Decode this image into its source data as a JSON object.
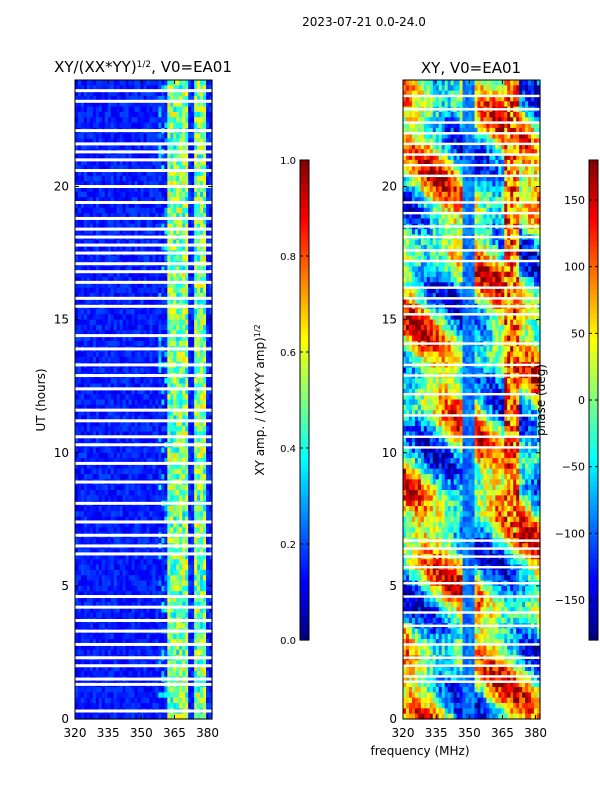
{
  "figure": {
    "suptitle": "2023-07-21 0.0-24.0",
    "xlabel": "frequency (MHz)"
  },
  "chart_data": [
    {
      "type": "heatmap",
      "title_main": "XY/(XX*YY)",
      "title_sup": "1/2",
      "title_rest": ", V0=EA01",
      "xlabel": "",
      "ylabel": "UT (hours)",
      "xlim": [
        320,
        382
      ],
      "ylim": [
        0,
        24
      ],
      "xticks": [
        320,
        335,
        350,
        365,
        380
      ],
      "yticks": [
        0,
        5,
        10,
        15,
        20
      ],
      "colorbar": {
        "label_main": "XY amp. / (XX*YY amp)",
        "label_sup": "1/2",
        "range": [
          0.0,
          1.0
        ],
        "ticks": [
          "0.0",
          "0.2",
          "0.4",
          "0.6",
          "0.8",
          "1.0"
        ],
        "colormap": "jet"
      },
      "features": {
        "background_level": 0.1,
        "bright_channels_mhz": [
          [
            362,
            364
          ],
          [
            365,
            368
          ],
          [
            369,
            371
          ],
          [
            374,
            376
          ],
          [
            377,
            379
          ]
        ],
        "flagged_ut_hours": [
          0.3,
          1.3,
          1.5,
          2.0,
          2.3,
          2.8,
          3.3,
          3.7,
          4.2,
          4.6,
          6.2,
          6.5,
          6.9,
          7.4,
          8.1,
          8.9,
          9.6,
          10.3,
          10.6,
          11.2,
          11.6,
          12.4,
          12.9,
          13.3,
          13.9,
          14.4,
          15.5,
          15.8,
          16.4,
          16.8,
          17.1,
          17.5,
          17.8,
          18.1,
          18.4,
          18.8,
          19.4,
          20.0,
          20.6,
          21.0,
          21.3,
          21.6,
          22.1,
          23.2,
          23.6
        ]
      }
    },
    {
      "type": "heatmap",
      "title": "XY, V0=EA01",
      "xlabel": "frequency (MHz)",
      "ylabel": "",
      "xlim": [
        320,
        382
      ],
      "ylim": [
        0,
        24
      ],
      "xticks": [
        320,
        335,
        350,
        365,
        380
      ],
      "yticks": [
        0,
        5,
        10,
        15,
        20
      ],
      "colorbar": {
        "label": "phase (deg)",
        "range": [
          -180,
          180
        ],
        "ticks": [
          "150",
          "100",
          "50",
          "0",
          "−50",
          "−100",
          "−150"
        ],
        "tick_values": [
          150,
          100,
          50,
          0,
          -50,
          -100,
          -150
        ],
        "colormap": "jet"
      },
      "features": {
        "flagged_ut_hours": [
          1.4,
          1.6,
          2.0,
          2.3,
          2.8,
          3.5,
          4.0,
          4.6,
          5.1,
          5.7,
          6.1,
          6.4,
          6.7,
          10.2,
          10.6,
          11.4,
          12.2,
          12.9,
          13.3,
          14.1,
          15.2,
          15.5,
          15.8,
          16.2,
          17.2,
          17.6,
          18.1,
          18.5,
          19.0,
          19.4,
          20.4,
          20.8,
          21.2,
          21.6,
          22.0,
          22.4,
          22.9,
          23.4
        ]
      }
    }
  ]
}
